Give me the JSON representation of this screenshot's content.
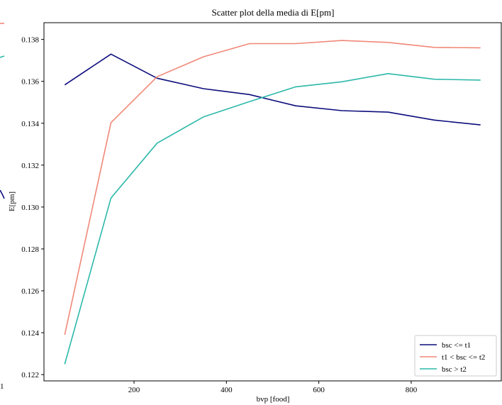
{
  "chart_data": {
    "type": "line",
    "title": "Scatter plot della media di E[pm]",
    "xlabel": "bvp [food]",
    "ylabel": "E[pm]",
    "xlim": [
      5,
      995
    ],
    "ylim": [
      0.1217,
      0.1388
    ],
    "x_ticks": [
      200,
      400,
      600,
      800
    ],
    "y_ticks": [
      0.122,
      0.124,
      0.126,
      0.128,
      0.13,
      0.132,
      0.134,
      0.136,
      0.138
    ],
    "grid": false,
    "legend_position": "lower-right",
    "x": [
      50,
      150,
      250,
      350,
      450,
      550,
      650,
      750,
      850,
      950
    ],
    "series": [
      {
        "name": "bsc <= t1",
        "color": "#0c0c7c",
        "values": [
          0.13583,
          0.1373,
          0.13615,
          0.13565,
          0.13537,
          0.13483,
          0.1346,
          0.13453,
          0.13415,
          0.13392
        ]
      },
      {
        "name": "t1 < bsc <= t2",
        "color": "#f08878",
        "values": [
          0.1239,
          0.13403,
          0.13622,
          0.13717,
          0.1378,
          0.1378,
          0.13795,
          0.13786,
          0.13762,
          0.1376
        ]
      },
      {
        "name": "bsc > t2",
        "color": "#2cb8aa",
        "values": [
          0.1225,
          0.13043,
          0.13305,
          0.1343,
          0.13503,
          0.13574,
          0.13598,
          0.13637,
          0.1361,
          0.13606
        ]
      }
    ],
    "left_edge_fragments": {
      "tick_label": "1",
      "colors": [
        "#f08878",
        "#2cb8aa",
        "#0c0c7c"
      ]
    }
  }
}
